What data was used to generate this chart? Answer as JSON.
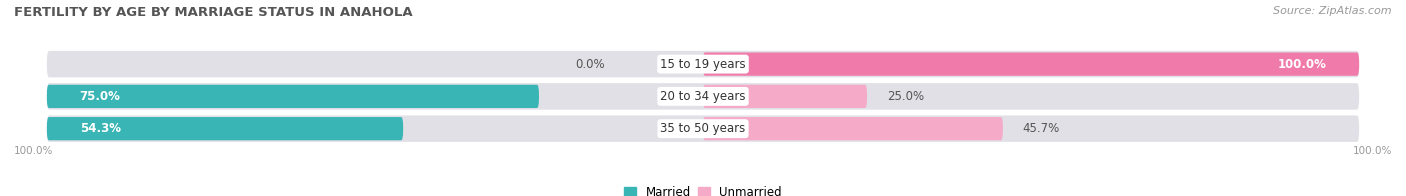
{
  "title": "FERTILITY BY AGE BY MARRIAGE STATUS IN ANAHOLA",
  "source": "Source: ZipAtlas.com",
  "categories": [
    "15 to 19 years",
    "20 to 34 years",
    "35 to 50 years"
  ],
  "married": [
    0.0,
    75.0,
    54.3
  ],
  "unmarried": [
    100.0,
    25.0,
    45.7
  ],
  "married_color": "#3ab5b5",
  "unmarried_color": "#f07aaa",
  "unmarried_light_color": "#f5aac8",
  "bar_bg_color": "#e0e0e6",
  "legend_married": "Married",
  "legend_unmarried": "Unmarried",
  "axis_label_left": "100.0%",
  "axis_label_right": "100.0%",
  "title_fontsize": 9.5,
  "label_fontsize": 8.5,
  "tick_fontsize": 7.5,
  "source_fontsize": 8
}
